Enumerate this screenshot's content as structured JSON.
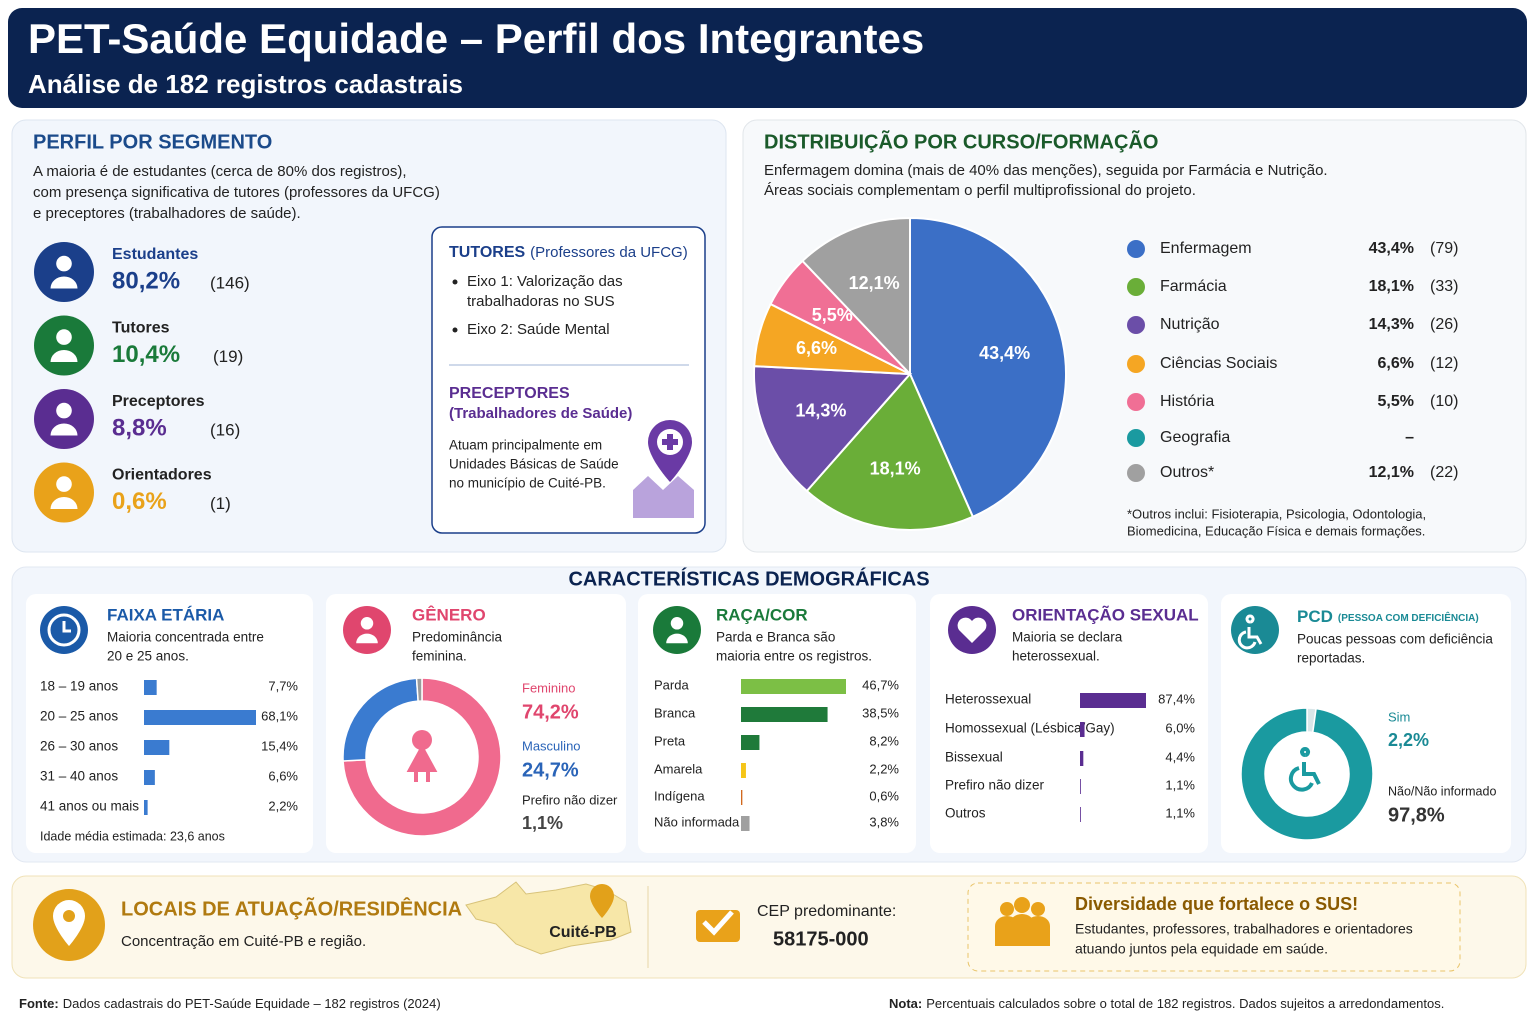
{
  "header": {
    "title": "PET-Saúde Equidade – Perfil dos Integrantes",
    "subtitle": "Análise de 182 registros cadastrais"
  },
  "segment": {
    "title": "PERFIL POR SEGMENTO",
    "description": [
      "A maioria é de estudantes (cerca de 80% dos registros),",
      "com presença significativa de tutores (professores da UFCG)",
      "e preceptores (trabalhadores de saúde)."
    ],
    "items": [
      {
        "name": "Estudantes",
        "share": "80,2%",
        "count": "(146)",
        "color": "#1b3f8a"
      },
      {
        "name": "Tutores",
        "share": "10,4%",
        "count": "(19)",
        "color": "#1a7a3a"
      },
      {
        "name": "Preceptores",
        "share": "8,8%",
        "count": "(16)",
        "color": "#5a2d91"
      },
      {
        "name": "Orientadores",
        "share": "0,6%",
        "count": "(1)",
        "color": "#e9a21a"
      }
    ],
    "tutores": {
      "title": "TUTORES",
      "note": "(Professores da UFCG)",
      "bullets": [
        [
          "Eixo 1: Valorização das",
          "trabalhadoras no SUS"
        ],
        [
          "Eixo 2: Saúde Mental"
        ]
      ]
    },
    "preceptores": {
      "title": "PRECEPTORES",
      "note": "(Trabalhadores de Saúde)",
      "description": [
        "Atuam principalmente em",
        "Unidades Básicas de Saúde",
        "no município de Cuité-PB."
      ]
    }
  },
  "course": {
    "type": "pie",
    "title": "DISTRIBUIÇÃO POR CURSO/FORMAÇÃO",
    "description": [
      "Enfermagem domina (mais de 40% das menções), seguida por Farmácia e Nutrição.",
      "Áreas sociais complementam o perfil multiprofissional do projeto."
    ],
    "categories": [
      "Enfermagem",
      "Farmácia",
      "Nutrição",
      "Ciências Sociais",
      "História",
      "Geografia",
      "Outros*"
    ],
    "values": [
      43.4,
      18.1,
      14.3,
      6.6,
      5.5,
      null,
      12.1
    ],
    "value_labels": [
      "43,4%",
      "18,1%",
      "14,3%",
      "6,6%",
      "5,5%",
      "–",
      "12,1%"
    ],
    "counts": [
      "(79)",
      "(33)",
      "(26)",
      "(12)",
      "(10)",
      null,
      "(22)"
    ],
    "colors": [
      "#3b6fc6",
      "#6aae38",
      "#6b4ea8",
      "#f5a623",
      "#f06f95",
      "#1a9aa0",
      "#a0a0a0"
    ],
    "footnote": [
      "*Outros inclui: Fisioterapia, Psicologia, Odontologia,",
      "Biomedicina, Educação Física e demais formações."
    ]
  },
  "demographics": {
    "title": "CARACTERÍSTICAS DEMOGRÁFICAS",
    "age": {
      "type": "bar",
      "title": "FAIXA ETÁRIA",
      "description": [
        "Maioria concentrada entre",
        "20 e 25 anos."
      ],
      "categories": [
        "18 – 19 anos",
        "20 – 25 anos",
        "26 – 30 anos",
        "31 – 40 anos",
        "41 anos ou mais"
      ],
      "values": [
        7.7,
        68.1,
        15.4,
        6.6,
        2.2
      ],
      "value_labels": [
        "7,7%",
        "68,1%",
        "15,4%",
        "6,6%",
        "2,2%"
      ],
      "color": "#3a7bd0",
      "note": "Idade média estimada: 23,6 anos"
    },
    "gender": {
      "type": "donut",
      "title": "GÊNERO",
      "description": [
        "Predominância",
        "feminina."
      ],
      "categories": [
        "Feminino",
        "Masculino",
        "Prefiro não dizer"
      ],
      "values": [
        74.2,
        24.7,
        1.1
      ],
      "value_labels": [
        "74,2%",
        "24,7%",
        "1,1%"
      ],
      "colors": [
        "#f06a8e",
        "#3a7bd0",
        "#9a9a9a"
      ]
    },
    "race": {
      "type": "bar",
      "title": "RAÇA/COR",
      "description": [
        "Parda e Branca são",
        "maioria entre os registros."
      ],
      "categories": [
        "Parda",
        "Branca",
        "Preta",
        "Amarela",
        "Indígena",
        "Não informada"
      ],
      "values": [
        46.7,
        38.5,
        8.2,
        2.2,
        0.6,
        3.8
      ],
      "value_labels": [
        "46,7%",
        "38,5%",
        "8,2%",
        "2,2%",
        "0,6%",
        "3,8%"
      ],
      "colors": [
        "#7cbf45",
        "#1f7a3a",
        "#1f7a3a",
        "#f5c518",
        "#d2691e",
        "#a0a0a0"
      ]
    },
    "orientation": {
      "type": "bar",
      "title": "ORIENTAÇÃO SEXUAL",
      "description": [
        "Maioria se declara",
        "heterossexual."
      ],
      "categories": [
        "Heterossexual",
        "Homossexual (Lésbica/Gay)",
        "Bissexual",
        "Prefiro não dizer",
        "Outros"
      ],
      "values": [
        87.4,
        6.0,
        4.4,
        1.1,
        1.1
      ],
      "value_labels": [
        "87,4%",
        "6,0%",
        "4,4%",
        "1,1%",
        "1,1%"
      ],
      "color": "#5a2d91"
    },
    "pcd": {
      "type": "donut",
      "title": "PCD",
      "note": "(PESSOA COM DEFICIÊNCIA)",
      "description": [
        "Poucas pessoas com deficiência",
        "reportadas."
      ],
      "categories": [
        "Sim",
        "Não/Não informado"
      ],
      "values": [
        2.2,
        97.8
      ],
      "value_labels": [
        "2,2%",
        "97,8%"
      ],
      "colors": [
        "#d9e6e8",
        "#1a9aa0"
      ]
    }
  },
  "location": {
    "title": "LOCAIS DE ATUAÇÃO/RESIDÊNCIA",
    "description": "Concentração em Cuité-PB e região.",
    "map_label": "Cuité-PB",
    "cep_label": "CEP predominante:",
    "cep": "58175-000"
  },
  "diversity": {
    "title": "Diversidade que fortalece o SUS!",
    "description": [
      "Estudantes, professores, trabalhadores e orientadores",
      "atuando juntos pela equidade em saúde."
    ]
  },
  "footer": {
    "source_label": "Fonte:",
    "source": "Dados cadastrais do PET-Saúde Equidade – 182 registros (2024)",
    "note_label": "Nota:",
    "note": "Percentuais calculados sobre o total de 182 registros. Dados sujeitos a arredondamentos."
  }
}
